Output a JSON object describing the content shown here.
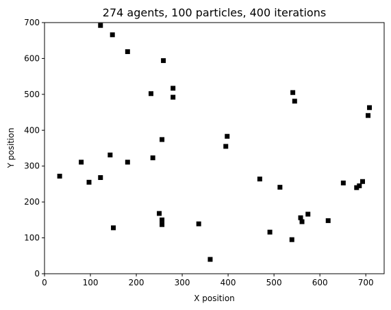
{
  "chart_data": {
    "type": "scatter",
    "title": "274 agents, 100 particles, 400 iterations",
    "xlabel": "X position",
    "ylabel": "Y position",
    "xlim": [
      0,
      740
    ],
    "ylim": [
      0,
      700
    ],
    "xticks": [
      0,
      100,
      200,
      300,
      400,
      500,
      600,
      700
    ],
    "yticks": [
      0,
      100,
      200,
      300,
      400,
      500,
      600,
      700
    ],
    "grid": false,
    "marker": "square",
    "marker_color": "#000000",
    "points": [
      {
        "x": 122,
        "y": 692
      },
      {
        "x": 148,
        "y": 666
      },
      {
        "x": 181,
        "y": 619
      },
      {
        "x": 259,
        "y": 594
      },
      {
        "x": 232,
        "y": 502
      },
      {
        "x": 280,
        "y": 517
      },
      {
        "x": 280,
        "y": 492
      },
      {
        "x": 541,
        "y": 505
      },
      {
        "x": 545,
        "y": 481
      },
      {
        "x": 708,
        "y": 463
      },
      {
        "x": 705,
        "y": 441
      },
      {
        "x": 398,
        "y": 383
      },
      {
        "x": 395,
        "y": 355
      },
      {
        "x": 256,
        "y": 374
      },
      {
        "x": 143,
        "y": 331
      },
      {
        "x": 80,
        "y": 311
      },
      {
        "x": 181,
        "y": 311
      },
      {
        "x": 236,
        "y": 323
      },
      {
        "x": 33,
        "y": 272
      },
      {
        "x": 97,
        "y": 255
      },
      {
        "x": 122,
        "y": 268
      },
      {
        "x": 469,
        "y": 264
      },
      {
        "x": 513,
        "y": 241
      },
      {
        "x": 651,
        "y": 253
      },
      {
        "x": 680,
        "y": 240
      },
      {
        "x": 686,
        "y": 245
      },
      {
        "x": 693,
        "y": 257
      },
      {
        "x": 250,
        "y": 168
      },
      {
        "x": 256,
        "y": 150
      },
      {
        "x": 256,
        "y": 137
      },
      {
        "x": 150,
        "y": 128
      },
      {
        "x": 336,
        "y": 139
      },
      {
        "x": 491,
        "y": 116
      },
      {
        "x": 539,
        "y": 95
      },
      {
        "x": 558,
        "y": 156
      },
      {
        "x": 561,
        "y": 145
      },
      {
        "x": 574,
        "y": 166
      },
      {
        "x": 618,
        "y": 148
      },
      {
        "x": 361,
        "y": 40
      }
    ]
  }
}
